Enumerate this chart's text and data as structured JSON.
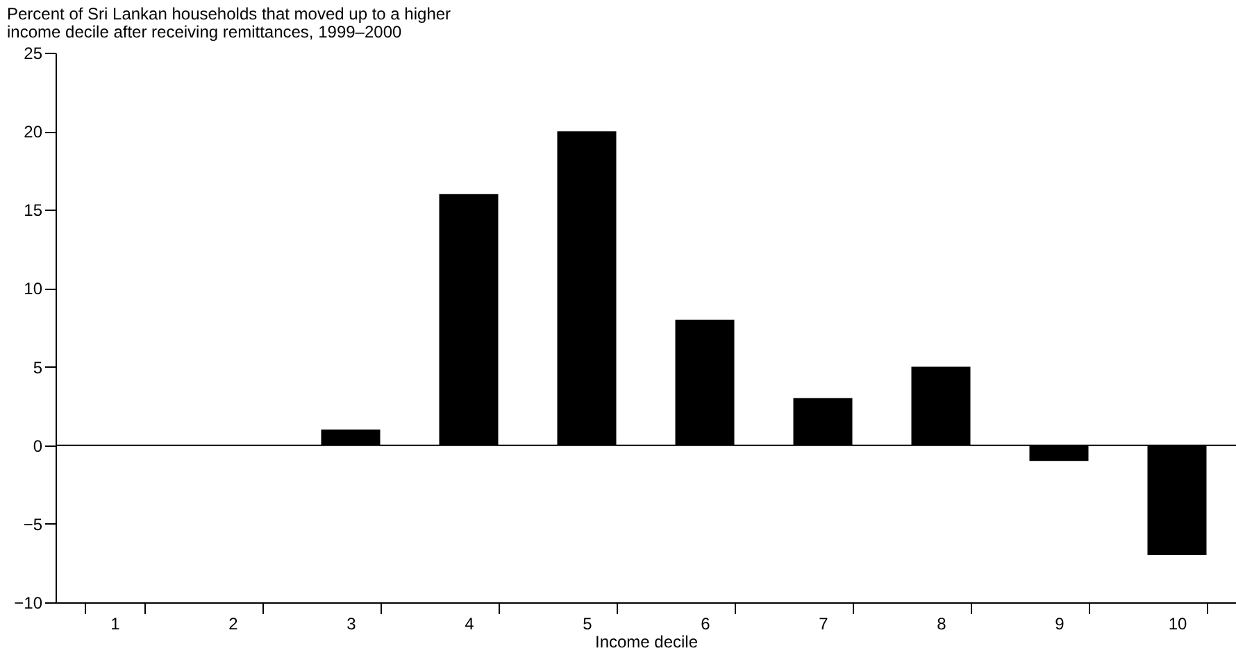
{
  "chart_data": {
    "type": "bar",
    "title": "Percent of Sri Lankan households that moved up to a higher\nincome decile after receiving remittances, 1999–2000",
    "xlabel": "Income decile",
    "categories": [
      "1",
      "2",
      "3",
      "4",
      "5",
      "6",
      "7",
      "8",
      "9",
      "10"
    ],
    "values": [
      0,
      0,
      1,
      16,
      20,
      8,
      3,
      5,
      -1,
      -7
    ],
    "color": "#000000",
    "ylim": [
      -10,
      25
    ],
    "yticks": [
      -10,
      -5,
      0,
      5,
      10,
      15,
      20,
      25
    ],
    "grid": false,
    "ref_lines": [
      {
        "axis": "y",
        "value": 0
      }
    ]
  }
}
